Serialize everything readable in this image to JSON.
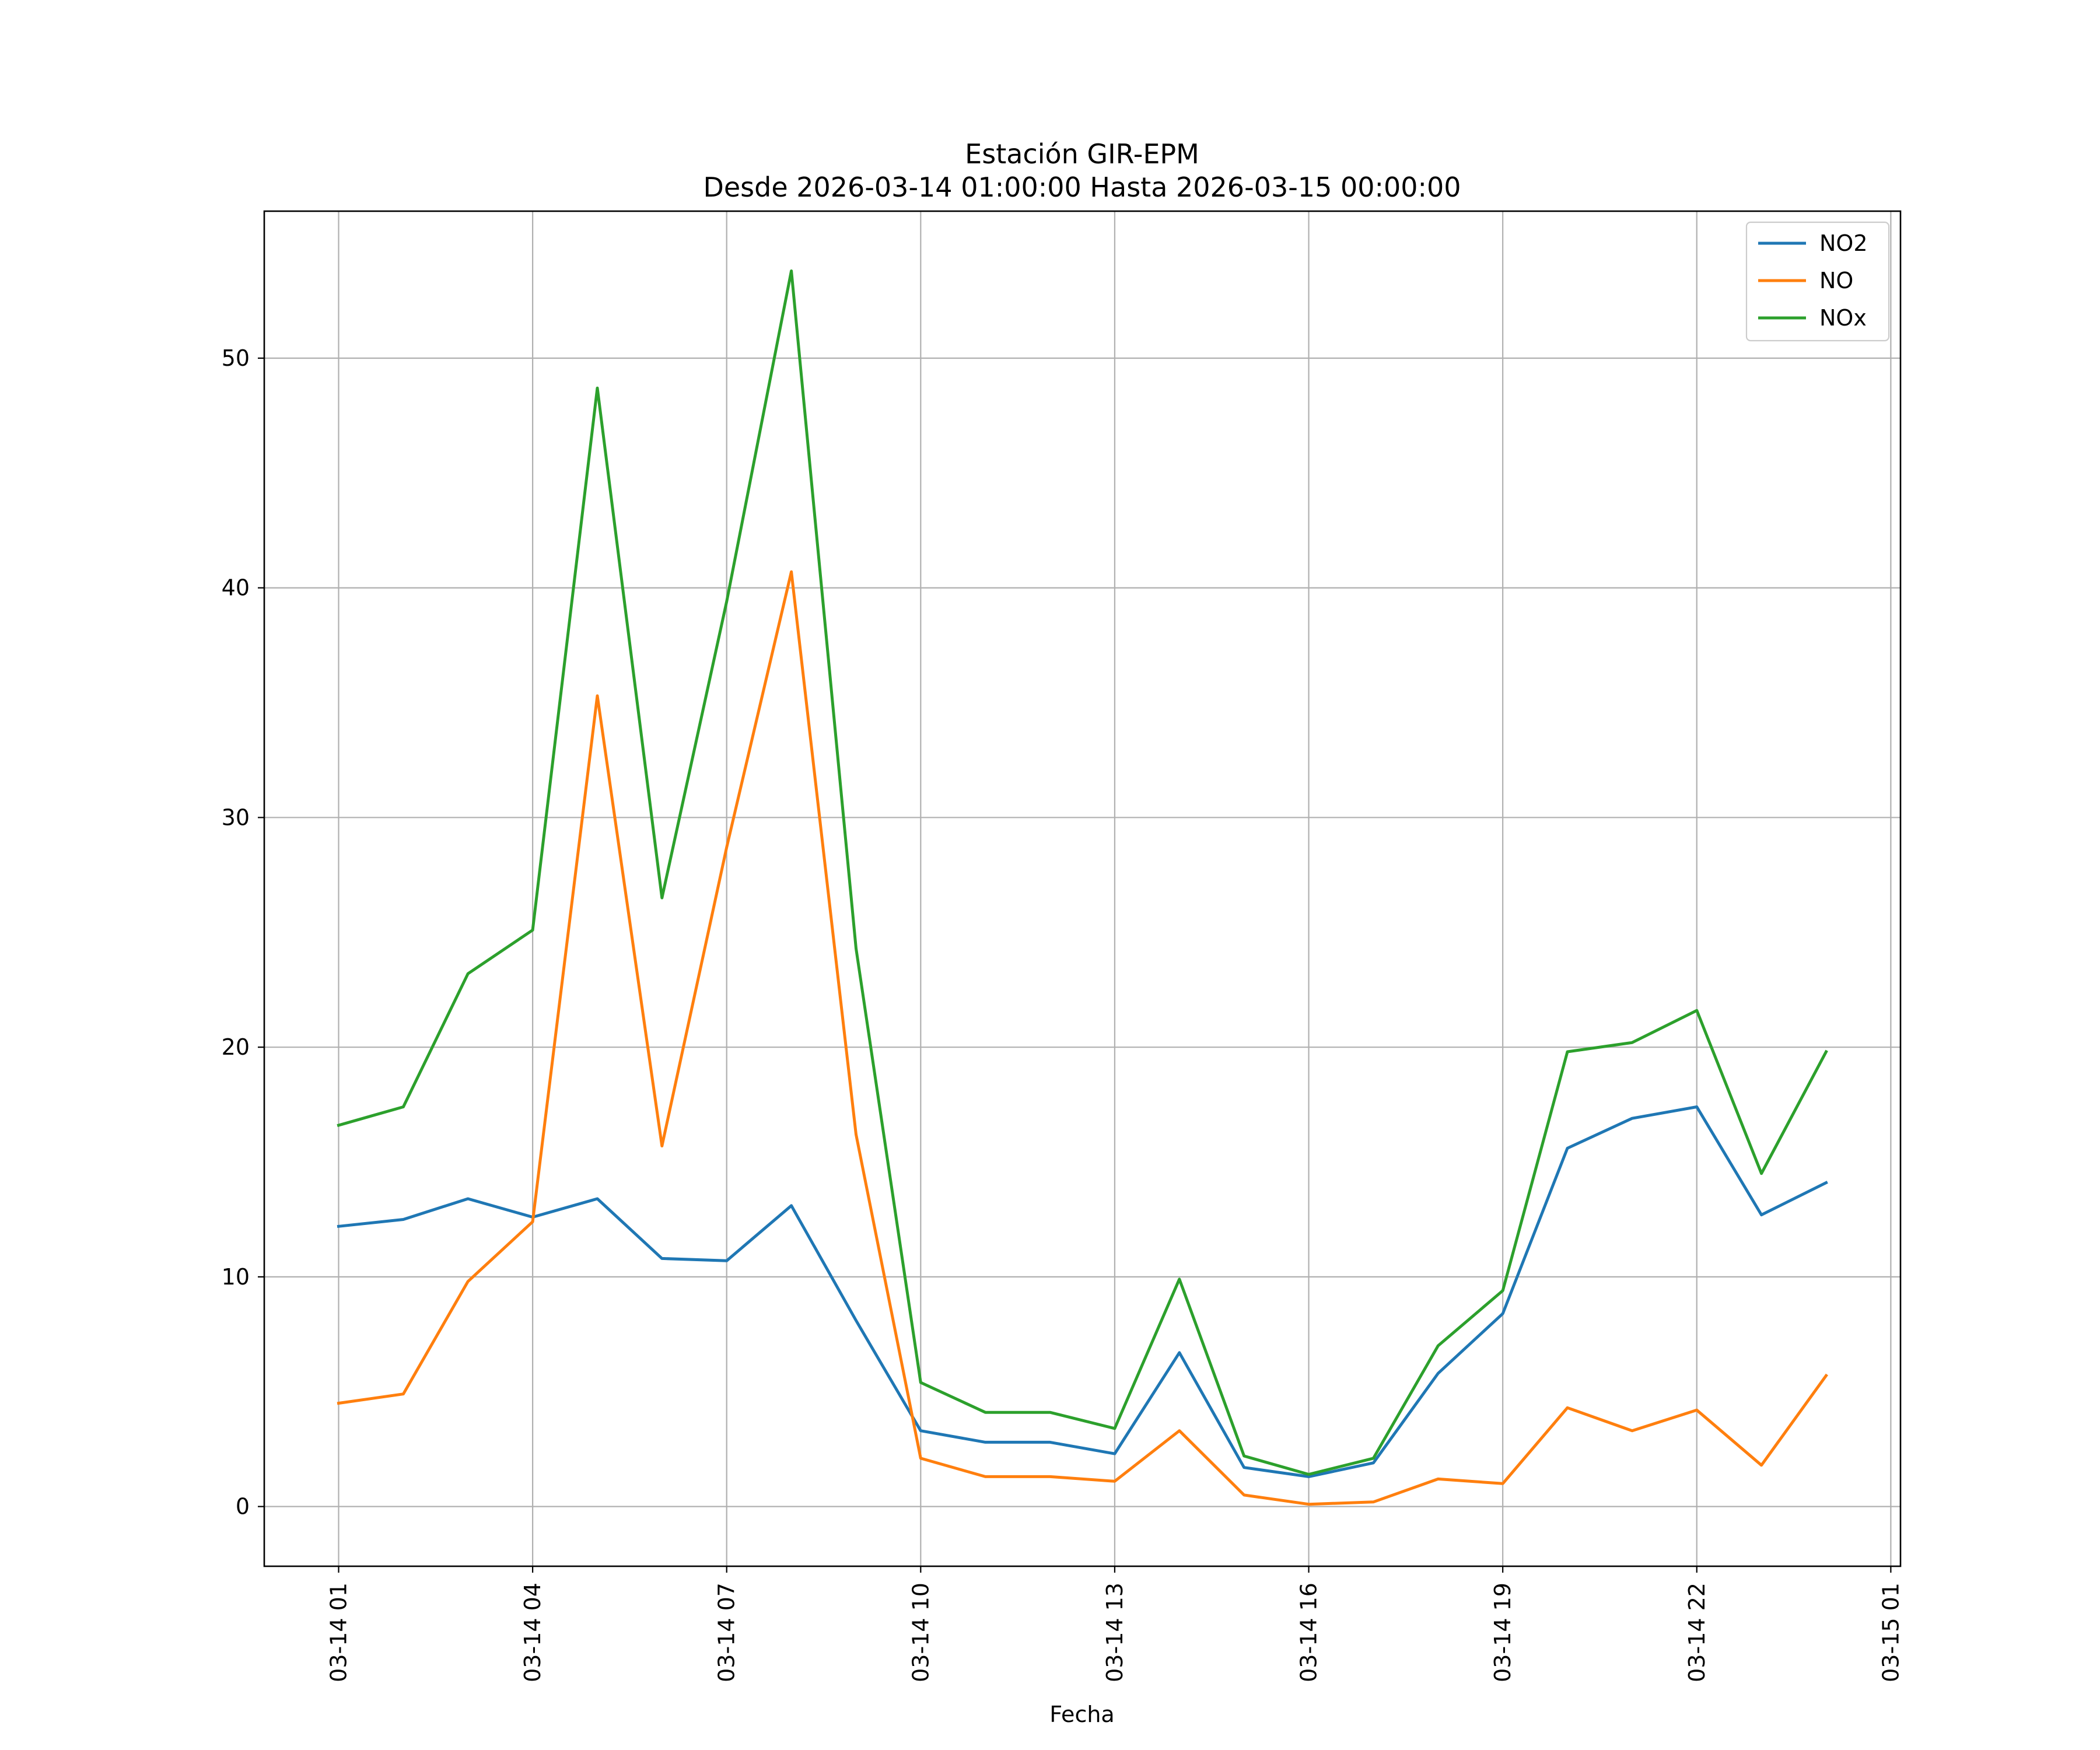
{
  "chart_data": {
    "type": "line",
    "title": "Estación GIR-EPM",
    "subtitle": "Desde 2026-03-14 01:00:00 Hasta 2026-03-15 00:00:00",
    "xlabel": "Fecha",
    "ylabel": "",
    "xlim": [
      "2026-03-13 23:51",
      "2026-03-15 01:09"
    ],
    "ylim": [
      -2.6,
      56.4
    ],
    "grid": true,
    "legend_position": "top-right",
    "x": [
      "2026-03-14 01:00",
      "2026-03-14 02:00",
      "2026-03-14 03:00",
      "2026-03-14 04:00",
      "2026-03-14 05:00",
      "2026-03-14 06:00",
      "2026-03-14 07:00",
      "2026-03-14 08:00",
      "2026-03-14 09:00",
      "2026-03-14 10:00",
      "2026-03-14 11:00",
      "2026-03-14 12:00",
      "2026-03-14 13:00",
      "2026-03-14 14:00",
      "2026-03-14 15:00",
      "2026-03-14 16:00",
      "2026-03-14 17:00",
      "2026-03-14 18:00",
      "2026-03-14 19:00",
      "2026-03-14 20:00",
      "2026-03-14 21:00",
      "2026-03-14 22:00",
      "2026-03-14 23:00",
      "2026-03-15 00:00"
    ],
    "x_ticks": [
      {
        "value": "2026-03-14 01:00",
        "label": "03-14 01"
      },
      {
        "value": "2026-03-14 04:00",
        "label": "03-14 04"
      },
      {
        "value": "2026-03-14 07:00",
        "label": "03-14 07"
      },
      {
        "value": "2026-03-14 10:00",
        "label": "03-14 10"
      },
      {
        "value": "2026-03-14 13:00",
        "label": "03-14 13"
      },
      {
        "value": "2026-03-14 16:00",
        "label": "03-14 16"
      },
      {
        "value": "2026-03-14 19:00",
        "label": "03-14 19"
      },
      {
        "value": "2026-03-14 22:00",
        "label": "03-14 22"
      },
      {
        "value": "2026-03-15 01:00",
        "label": "03-15 01"
      }
    ],
    "y_ticks": [
      0,
      10,
      20,
      30,
      40,
      50
    ],
    "series": [
      {
        "name": "NO2",
        "color": "#1f77b4",
        "values": [
          12.2,
          12.5,
          13.4,
          12.6,
          13.4,
          10.8,
          10.7,
          13.1,
          8.1,
          3.3,
          2.8,
          2.8,
          2.3,
          6.7,
          1.7,
          1.3,
          1.9,
          5.8,
          8.4,
          15.6,
          16.9,
          17.4,
          12.7,
          14.1
        ]
      },
      {
        "name": "NO",
        "color": "#ff7f0e",
        "values": [
          4.5,
          4.9,
          9.8,
          12.4,
          35.3,
          15.7,
          28.7,
          40.7,
          16.2,
          2.1,
          1.3,
          1.3,
          1.1,
          3.3,
          0.5,
          0.1,
          0.2,
          1.2,
          1.0,
          4.3,
          3.3,
          4.2,
          1.8,
          5.7
        ]
      },
      {
        "name": "NOx",
        "color": "#2ca02c",
        "values": [
          16.6,
          17.4,
          23.2,
          25.1,
          48.7,
          26.5,
          39.4,
          53.8,
          24.3,
          5.4,
          4.1,
          4.1,
          3.4,
          9.9,
          2.2,
          1.4,
          2.1,
          7.0,
          9.4,
          19.8,
          20.2,
          21.6,
          14.5,
          19.8
        ]
      }
    ]
  }
}
